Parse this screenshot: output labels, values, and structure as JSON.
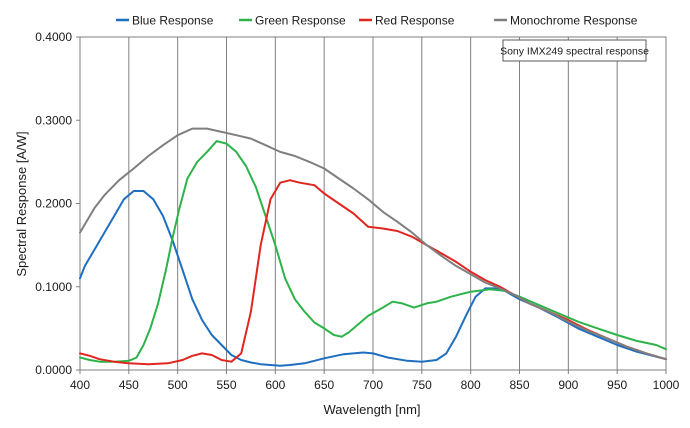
{
  "chart_data": {
    "type": "line",
    "annotation": "Sony IMX249 spectral response",
    "xlabel": "Wavelength [nm]",
    "ylabel": "Spectral Response [A/W]",
    "xlim": [
      400,
      1000
    ],
    "ylim": [
      0,
      0.4
    ],
    "x_ticks": [
      "400",
      "450",
      "500",
      "550",
      "600",
      "650",
      "700",
      "750",
      "800",
      "850",
      "900",
      "950",
      "1000"
    ],
    "y_ticks": [
      "0.0000",
      "0.1000",
      "0.2000",
      "0.3000",
      "0.4000"
    ],
    "grid": "vertical",
    "legend_position": "top",
    "series": [
      {
        "name": "Blue Response",
        "color": "#1f6fc1",
        "points": [
          [
            400,
            0.11
          ],
          [
            405,
            0.125
          ],
          [
            415,
            0.145
          ],
          [
            425,
            0.165
          ],
          [
            435,
            0.185
          ],
          [
            445,
            0.205
          ],
          [
            455,
            0.215
          ],
          [
            465,
            0.215
          ],
          [
            475,
            0.205
          ],
          [
            485,
            0.185
          ],
          [
            495,
            0.155
          ],
          [
            505,
            0.12
          ],
          [
            515,
            0.085
          ],
          [
            525,
            0.06
          ],
          [
            535,
            0.042
          ],
          [
            545,
            0.03
          ],
          [
            555,
            0.018
          ],
          [
            565,
            0.012
          ],
          [
            575,
            0.009
          ],
          [
            585,
            0.007
          ],
          [
            595,
            0.006
          ],
          [
            605,
            0.005
          ],
          [
            615,
            0.006
          ],
          [
            630,
            0.008
          ],
          [
            650,
            0.014
          ],
          [
            670,
            0.019
          ],
          [
            690,
            0.021
          ],
          [
            700,
            0.02
          ],
          [
            715,
            0.015
          ],
          [
            735,
            0.011
          ],
          [
            750,
            0.01
          ],
          [
            765,
            0.012
          ],
          [
            775,
            0.02
          ],
          [
            785,
            0.04
          ],
          [
            795,
            0.065
          ],
          [
            805,
            0.088
          ],
          [
            815,
            0.098
          ],
          [
            825,
            0.098
          ],
          [
            835,
            0.095
          ],
          [
            850,
            0.085
          ],
          [
            870,
            0.075
          ],
          [
            890,
            0.063
          ],
          [
            910,
            0.05
          ],
          [
            930,
            0.04
          ],
          [
            950,
            0.03
          ],
          [
            970,
            0.022
          ],
          [
            990,
            0.016
          ],
          [
            1000,
            0.013
          ]
        ]
      },
      {
        "name": "Green Response",
        "color": "#2db34a",
        "points": [
          [
            400,
            0.015
          ],
          [
            410,
            0.012
          ],
          [
            420,
            0.01
          ],
          [
            435,
            0.01
          ],
          [
            450,
            0.011
          ],
          [
            458,
            0.015
          ],
          [
            465,
            0.03
          ],
          [
            472,
            0.05
          ],
          [
            480,
            0.08
          ],
          [
            488,
            0.12
          ],
          [
            495,
            0.16
          ],
          [
            502,
            0.195
          ],
          [
            510,
            0.23
          ],
          [
            520,
            0.25
          ],
          [
            530,
            0.262
          ],
          [
            540,
            0.275
          ],
          [
            550,
            0.272
          ],
          [
            560,
            0.262
          ],
          [
            570,
            0.245
          ],
          [
            580,
            0.22
          ],
          [
            590,
            0.185
          ],
          [
            600,
            0.15
          ],
          [
            610,
            0.11
          ],
          [
            620,
            0.085
          ],
          [
            630,
            0.07
          ],
          [
            640,
            0.057
          ],
          [
            650,
            0.05
          ],
          [
            660,
            0.042
          ],
          [
            668,
            0.04
          ],
          [
            675,
            0.045
          ],
          [
            685,
            0.055
          ],
          [
            695,
            0.065
          ],
          [
            710,
            0.075
          ],
          [
            720,
            0.082
          ],
          [
            730,
            0.08
          ],
          [
            742,
            0.075
          ],
          [
            755,
            0.08
          ],
          [
            765,
            0.082
          ],
          [
            780,
            0.088
          ],
          [
            800,
            0.094
          ],
          [
            820,
            0.097
          ],
          [
            835,
            0.095
          ],
          [
            850,
            0.088
          ],
          [
            870,
            0.078
          ],
          [
            890,
            0.068
          ],
          [
            910,
            0.058
          ],
          [
            930,
            0.05
          ],
          [
            950,
            0.042
          ],
          [
            970,
            0.035
          ],
          [
            990,
            0.03
          ],
          [
            1000,
            0.025
          ]
        ]
      },
      {
        "name": "Red Response",
        "color": "#e0261f",
        "points": [
          [
            400,
            0.02
          ],
          [
            410,
            0.017
          ],
          [
            420,
            0.013
          ],
          [
            435,
            0.01
          ],
          [
            450,
            0.008
          ],
          [
            470,
            0.007
          ],
          [
            490,
            0.008
          ],
          [
            505,
            0.012
          ],
          [
            515,
            0.017
          ],
          [
            525,
            0.02
          ],
          [
            535,
            0.018
          ],
          [
            545,
            0.012
          ],
          [
            555,
            0.01
          ],
          [
            565,
            0.02
          ],
          [
            575,
            0.07
          ],
          [
            585,
            0.15
          ],
          [
            595,
            0.205
          ],
          [
            605,
            0.225
          ],
          [
            615,
            0.228
          ],
          [
            625,
            0.225
          ],
          [
            640,
            0.222
          ],
          [
            650,
            0.212
          ],
          [
            665,
            0.2
          ],
          [
            680,
            0.188
          ],
          [
            695,
            0.172
          ],
          [
            710,
            0.17
          ],
          [
            725,
            0.167
          ],
          [
            740,
            0.16
          ],
          [
            755,
            0.15
          ],
          [
            770,
            0.14
          ],
          [
            785,
            0.13
          ],
          [
            800,
            0.118
          ],
          [
            815,
            0.108
          ],
          [
            830,
            0.1
          ],
          [
            845,
            0.09
          ],
          [
            860,
            0.08
          ],
          [
            880,
            0.07
          ],
          [
            900,
            0.06
          ],
          [
            920,
            0.048
          ],
          [
            940,
            0.038
          ],
          [
            960,
            0.028
          ],
          [
            980,
            0.02
          ],
          [
            1000,
            0.013
          ]
        ]
      },
      {
        "name": "Monochrome Response",
        "color": "#7f7f7f",
        "points": [
          [
            400,
            0.165
          ],
          [
            405,
            0.175
          ],
          [
            415,
            0.195
          ],
          [
            425,
            0.21
          ],
          [
            440,
            0.228
          ],
          [
            455,
            0.242
          ],
          [
            470,
            0.257
          ],
          [
            485,
            0.27
          ],
          [
            500,
            0.282
          ],
          [
            515,
            0.29
          ],
          [
            530,
            0.29
          ],
          [
            545,
            0.286
          ],
          [
            560,
            0.282
          ],
          [
            575,
            0.278
          ],
          [
            590,
            0.27
          ],
          [
            605,
            0.262
          ],
          [
            620,
            0.257
          ],
          [
            635,
            0.25
          ],
          [
            650,
            0.242
          ],
          [
            665,
            0.23
          ],
          [
            680,
            0.218
          ],
          [
            695,
            0.205
          ],
          [
            710,
            0.19
          ],
          [
            725,
            0.178
          ],
          [
            740,
            0.165
          ],
          [
            755,
            0.15
          ],
          [
            770,
            0.137
          ],
          [
            785,
            0.125
          ],
          [
            800,
            0.115
          ],
          [
            815,
            0.105
          ],
          [
            830,
            0.098
          ],
          [
            845,
            0.09
          ],
          [
            860,
            0.08
          ],
          [
            880,
            0.07
          ],
          [
            900,
            0.058
          ],
          [
            920,
            0.047
          ],
          [
            940,
            0.038
          ],
          [
            960,
            0.028
          ],
          [
            980,
            0.02
          ],
          [
            1000,
            0.013
          ]
        ]
      }
    ]
  }
}
